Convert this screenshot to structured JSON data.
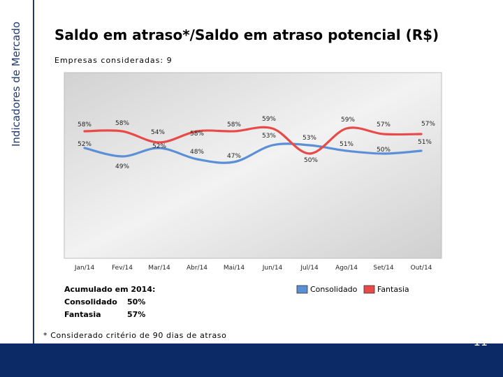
{
  "sidebar": {
    "label": "Indicadores de Mercado"
  },
  "header": {
    "title": "Saldo em atraso*/Saldo em atraso potencial (R$)",
    "subtitle": "Empresas consideradas: 9"
  },
  "chart_data": {
    "type": "line",
    "title": "Saldo em atraso*/Saldo em atraso potencial (R$)",
    "categories": [
      "Jan/14",
      "Fev/14",
      "Mar/14",
      "Abr/14",
      "Mai/14",
      "Jun/14",
      "Jul/14",
      "Ago/14",
      "Set/14",
      "Out/14"
    ],
    "series": [
      {
        "name": "Consolidado",
        "color": "#5b8fd6",
        "values": [
          52,
          49,
          52,
          48,
          47,
          53,
          53,
          51,
          50,
          51
        ],
        "labels": [
          "52%",
          "49%",
          "52%",
          "48%",
          "47%",
          "53%",
          "53%",
          "51%",
          "50%",
          "51%"
        ]
      },
      {
        "name": "Fantasia",
        "color": "#e84a4a",
        "values": [
          58,
          58,
          54,
          58,
          58,
          59,
          50,
          59,
          57,
          57
        ],
        "labels": [
          "58%",
          "58%",
          "54%",
          "58%",
          "58%",
          "59%",
          "50%",
          "59%",
          "57%",
          "57%"
        ]
      }
    ],
    "legend": [
      "Consolidado",
      "Fantasia"
    ],
    "legend_position": "bottom-right",
    "grid": false
  },
  "accumulated": {
    "heading": "Acumulado em 2014:",
    "rows": [
      {
        "label": "Consolidado",
        "value": "50%"
      },
      {
        "label": "Fantasia",
        "value": "57%"
      }
    ]
  },
  "footnote": "* Considerado critério de 90 dias de atraso",
  "page_number": "11",
  "colors": {
    "navy": "#0b2a66",
    "plot_bg": "#dcdcdc",
    "consolidado": "#5b8fd6",
    "fantasia": "#e84a4a"
  }
}
